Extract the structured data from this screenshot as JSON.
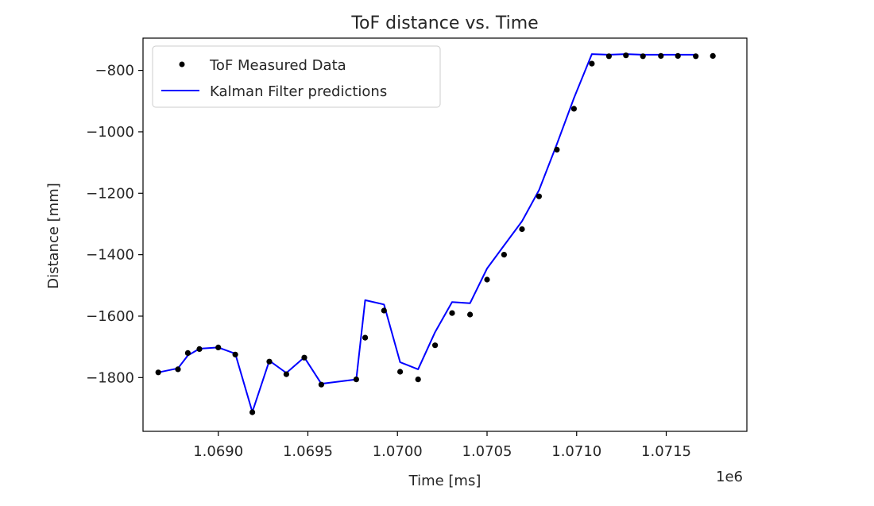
{
  "chart_data": {
    "type": "line",
    "title": "ToF distance vs. Time",
    "xlabel": "Time [ms]",
    "ylabel": "Distance [mm]",
    "x_offset_label": "1e6",
    "xlim": [
      1068580,
      1071950
    ],
    "ylim": [
      -1975,
      -695
    ],
    "x_ticks": [
      1069000,
      1069500,
      1070000,
      1070500,
      1071000,
      1071500
    ],
    "x_tick_labels": [
      "1.0690",
      "1.0695",
      "1.0700",
      "1.0705",
      "1.0710",
      "1.0715"
    ],
    "y_ticks": [
      -800,
      -1000,
      -1200,
      -1400,
      -1600,
      -1800
    ],
    "y_tick_labels": [
      "−800",
      "−1000",
      "−1200",
      "−1400",
      "−1600",
      "−1800"
    ],
    "legend_position": "top-left",
    "grid": false,
    "series": [
      {
        "name": "ToF Measured Data",
        "kind": "scatter",
        "color": "#000000",
        "points": [
          [
            1068665,
            -1783
          ],
          [
            1068775,
            -1773
          ],
          [
            1068830,
            -1720
          ],
          [
            1068895,
            -1707
          ],
          [
            1069000,
            -1702
          ],
          [
            1069095,
            -1725
          ],
          [
            1069190,
            -1913
          ],
          [
            1069285,
            -1748
          ],
          [
            1069380,
            -1789
          ],
          [
            1069480,
            -1735
          ],
          [
            1069575,
            -1823
          ],
          [
            1069770,
            -1806
          ],
          [
            1069820,
            -1670
          ],
          [
            1069925,
            -1582
          ],
          [
            1070015,
            -1781
          ],
          [
            1070115,
            -1806
          ],
          [
            1070210,
            -1695
          ],
          [
            1070305,
            -1590
          ],
          [
            1070405,
            -1595
          ],
          [
            1070500,
            -1481
          ],
          [
            1070595,
            -1400
          ],
          [
            1070695,
            -1317
          ],
          [
            1070790,
            -1210
          ],
          [
            1070890,
            -1058
          ],
          [
            1070985,
            -925
          ],
          [
            1071085,
            -778
          ],
          [
            1071180,
            -754
          ],
          [
            1071275,
            -751
          ],
          [
            1071370,
            -754
          ],
          [
            1071470,
            -753
          ],
          [
            1071565,
            -753
          ],
          [
            1071665,
            -754
          ],
          [
            1071760,
            -753
          ]
        ]
      },
      {
        "name": "Kalman Filter predictions",
        "kind": "line",
        "color": "#0000ff",
        "points": [
          [
            1068665,
            -1783
          ],
          [
            1068775,
            -1770
          ],
          [
            1068830,
            -1728
          ],
          [
            1068895,
            -1706
          ],
          [
            1069000,
            -1702
          ],
          [
            1069095,
            -1722
          ],
          [
            1069190,
            -1912
          ],
          [
            1069285,
            -1745
          ],
          [
            1069380,
            -1785
          ],
          [
            1069480,
            -1734
          ],
          [
            1069575,
            -1820
          ],
          [
            1069770,
            -1806
          ],
          [
            1069820,
            -1548
          ],
          [
            1069925,
            -1562
          ],
          [
            1070015,
            -1750
          ],
          [
            1070115,
            -1773
          ],
          [
            1070210,
            -1652
          ],
          [
            1070305,
            -1554
          ],
          [
            1070405,
            -1558
          ],
          [
            1070500,
            -1445
          ],
          [
            1070595,
            -1370
          ],
          [
            1070695,
            -1291
          ],
          [
            1070790,
            -1190
          ],
          [
            1070890,
            -1040
          ],
          [
            1070985,
            -890
          ],
          [
            1071085,
            -747
          ],
          [
            1071180,
            -749
          ],
          [
            1071275,
            -747
          ],
          [
            1071370,
            -749
          ],
          [
            1071470,
            -749
          ],
          [
            1071565,
            -749
          ],
          [
            1071665,
            -749
          ]
        ]
      }
    ]
  }
}
